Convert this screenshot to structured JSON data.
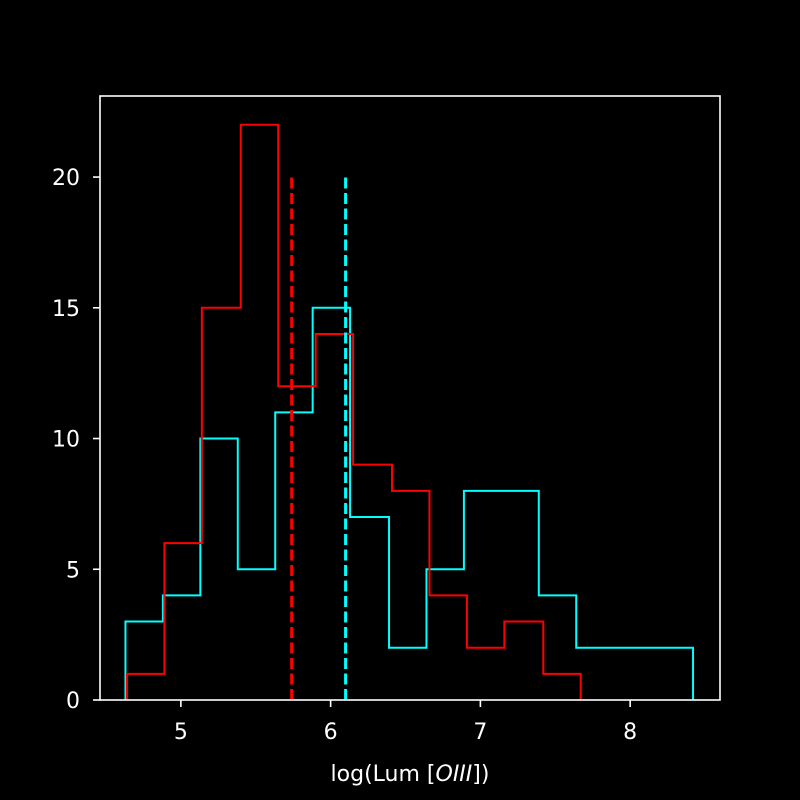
{
  "chart_data": {
    "type": "histogram",
    "title": "",
    "xlabel_prefix": "log(Lum [",
    "xlabel_italic": "OIII",
    "xlabel_suffix": "])",
    "ylabel": "",
    "xlim": [
      4.46,
      8.6
    ],
    "ylim": [
      0,
      23.1
    ],
    "xticks": [
      5,
      6,
      7,
      8
    ],
    "yticks": [
      0,
      5,
      10,
      15,
      20
    ],
    "grid": false,
    "legend": "none",
    "background": "#000000",
    "axis_color": "#ffffff",
    "series": [
      {
        "color": "#00ffff",
        "bin_edges": [
          4.63,
          4.88,
          5.13,
          5.38,
          5.63,
          5.88,
          6.13,
          6.39,
          6.64,
          6.89,
          7.14,
          7.39,
          7.64,
          7.89,
          8.14,
          8.42
        ],
        "counts": [
          3,
          4,
          10,
          5,
          11,
          15,
          7,
          2,
          5,
          8,
          8,
          4,
          2,
          2,
          2
        ],
        "median": 6.1
      },
      {
        "color": "#ff0000",
        "bin_edges": [
          4.64,
          4.89,
          5.14,
          5.4,
          5.65,
          5.9,
          6.15,
          6.41,
          6.66,
          6.91,
          7.16,
          7.42,
          7.67
        ],
        "counts": [
          1,
          6,
          15,
          22,
          12,
          14,
          9,
          8,
          4,
          2,
          3,
          1
        ],
        "median": 5.74
      }
    ],
    "median_line_top": 20
  }
}
